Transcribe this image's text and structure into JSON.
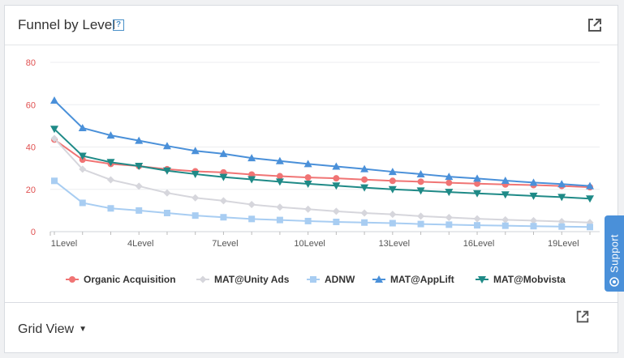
{
  "panel": {
    "title": "Funnel by Level",
    "help": "?"
  },
  "grid_view": {
    "label": "Grid View"
  },
  "support": {
    "label": "Support"
  },
  "icons": {
    "expand": "external-link-icon",
    "help": "help-icon",
    "caret": "caret-down-icon",
    "support": "support-icon"
  },
  "chart_data": {
    "type": "line",
    "x": [
      1,
      2,
      3,
      4,
      5,
      6,
      7,
      8,
      9,
      10,
      11,
      12,
      13,
      14,
      15,
      16,
      17,
      18,
      19,
      20
    ],
    "x_tick_labels": [
      "1Level",
      "4Level",
      "7Level",
      "10Level",
      "13Level",
      "16Level",
      "19Level"
    ],
    "x_tick_values": [
      1,
      4,
      7,
      10,
      13,
      16,
      19
    ],
    "y_ticks": [
      0,
      20,
      40,
      60,
      80
    ],
    "ylim": [
      0,
      80
    ],
    "grid": true,
    "legend": "bottom",
    "series": [
      {
        "name": "Organic Acquisition",
        "color": "#f07474",
        "marker": "circle",
        "values": [
          43.5,
          34,
          32,
          31,
          29.5,
          28.5,
          28,
          27,
          26.2,
          25.6,
          25.2,
          24.6,
          24,
          23.6,
          23.1,
          22.7,
          22.3,
          22,
          21.6,
          21
        ]
      },
      {
        "name": "MAT@Unity Ads",
        "color": "#d6d6dc",
        "marker": "diamond",
        "values": [
          44,
          29.5,
          24.5,
          21.5,
          18.3,
          16,
          14.6,
          12.8,
          11.6,
          10.6,
          9.6,
          8.8,
          8.2,
          7.3,
          6.7,
          6.1,
          5.6,
          5.2,
          4.8,
          4.3
        ]
      },
      {
        "name": "ADNW",
        "color": "#a8cdf2",
        "marker": "square",
        "values": [
          24,
          13.6,
          11,
          10,
          8.8,
          7.6,
          6.8,
          6,
          5.5,
          5,
          4.6,
          4.3,
          4,
          3.6,
          3.3,
          3,
          2.8,
          2.6,
          2.4,
          2.2
        ]
      },
      {
        "name": "MAT@AppLift",
        "color": "#4a90d9",
        "marker": "triangle-up",
        "values": [
          62,
          49,
          45.5,
          43,
          40.5,
          38.2,
          36.8,
          34.8,
          33.4,
          32,
          30.8,
          29.6,
          28.3,
          27.2,
          26,
          25.1,
          24.1,
          23.2,
          22.5,
          21.6
        ]
      },
      {
        "name": "MAT@Mobvista",
        "color": "#1f8a87",
        "marker": "triangle-down",
        "values": [
          48.5,
          35.8,
          32.8,
          31,
          28.8,
          27.2,
          25.8,
          24.7,
          23.6,
          22.6,
          21.7,
          20.8,
          20,
          19.4,
          18.7,
          18.1,
          17.5,
          16.9,
          16.3,
          15.6
        ]
      }
    ]
  }
}
